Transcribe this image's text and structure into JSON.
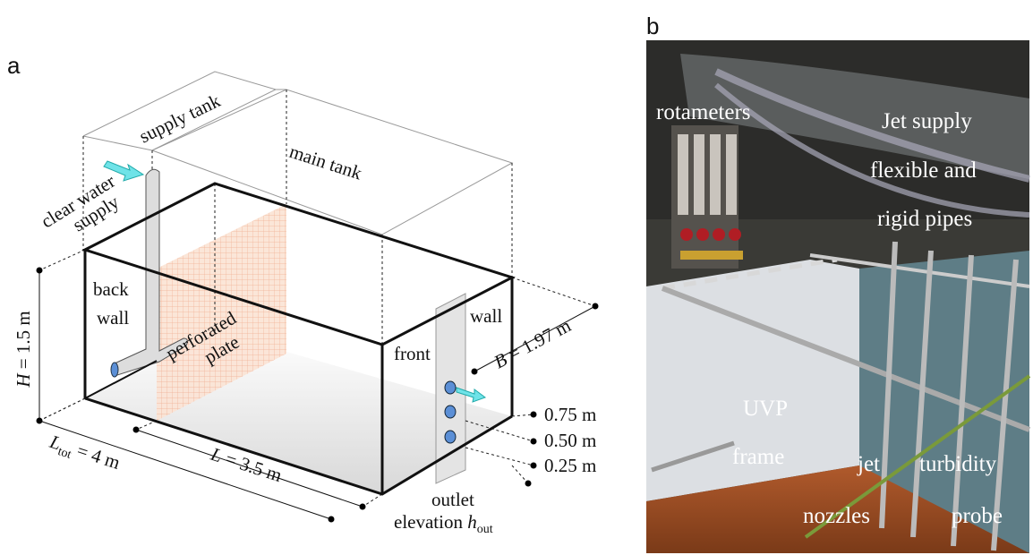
{
  "panel_a": {
    "label": "a",
    "supply_tank": "supply tank",
    "main_tank": "main tank",
    "clear_water_supply": [
      "clear water",
      "supply"
    ],
    "back_wall": [
      "back",
      "wall"
    ],
    "perforated_plate": [
      "perforated",
      "plate"
    ],
    "front_wall": [
      "front",
      "wall"
    ],
    "height": {
      "symbol": "H",
      "text": " = 1.5 m"
    },
    "width": {
      "symbol": "B",
      "text": " = 1.97 m"
    },
    "total_length": {
      "symbol": "L",
      "subscript": "tot",
      "text": " = 4 m"
    },
    "length": {
      "symbol": "L",
      "text": " = 3.5 m"
    },
    "outlet_elevations": [
      "0.75 m",
      "0.50 m",
      "0.25 m"
    ],
    "outlet_elevation": {
      "line1": "outlet",
      "line2": "elevation ",
      "symbol": "h",
      "subscript": "out"
    }
  },
  "panel_b": {
    "label": "b",
    "annotations": [
      "rotameters",
      "Jet supply",
      "flexible and",
      "rigid pipes",
      "UVP",
      "frame",
      "jet",
      "nozzles",
      "turbidity",
      "probe"
    ]
  }
}
